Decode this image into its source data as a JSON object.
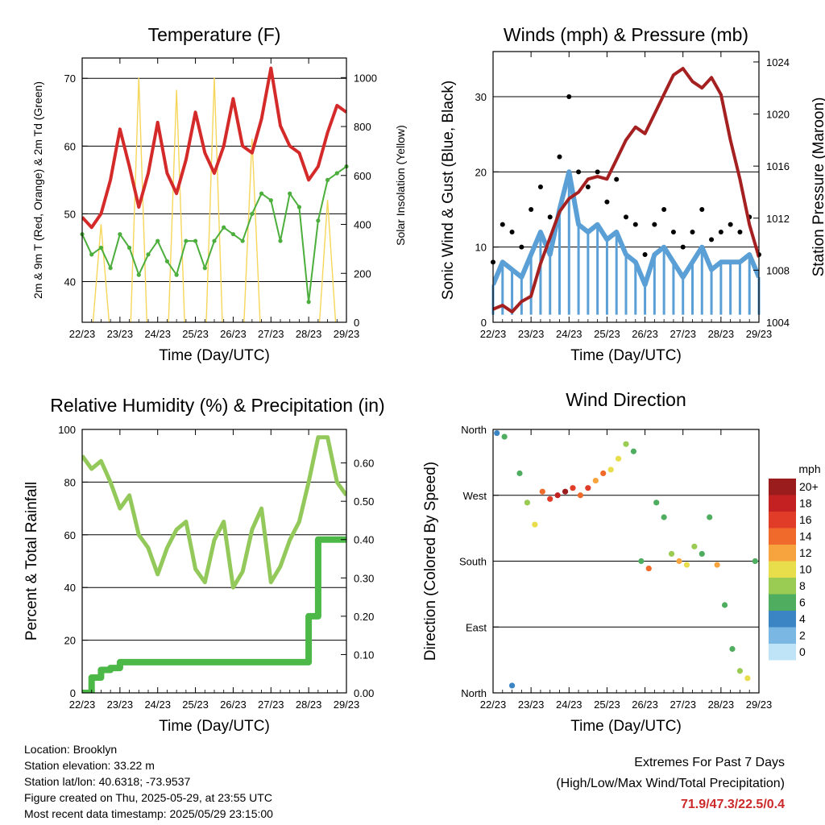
{
  "x_ticks": [
    "22/23",
    "23/23",
    "24/23",
    "25/23",
    "26/23",
    "27/23",
    "28/23",
    "29/23"
  ],
  "x_label": "Time (Day/UTC)",
  "colors": {
    "red_temp": "#d42a2a",
    "green_td": "#4cae3c",
    "solar": "#f5d65a",
    "gust": "#000000",
    "wind": "#5a9fd6",
    "pressure": "#a52020",
    "rh": "#93c95a",
    "precip": "#4cb847",
    "extreme_text": "#cc2a2a"
  },
  "panels": {
    "temperature": {
      "title": "Temperature (F)",
      "ylabel_left": "2m & 9m T (Red, Orange) & 2m Td (Green)",
      "ylabel_right": "Solar Insolation (Yellow)",
      "left_ticks": [
        "40",
        "50",
        "60",
        "70"
      ],
      "right_ticks": [
        "0",
        "200",
        "400",
        "600",
        "800",
        "1000"
      ]
    },
    "winds": {
      "title": "Winds (mph) & Pressure (mb)",
      "ylabel_left": "Sonic Wind & Gust (Blue, Black)",
      "ylabel_right": "Station Pressure (Maroon)",
      "left_ticks": [
        "0",
        "10",
        "20",
        "30"
      ],
      "right_ticks": [
        "1004",
        "1008",
        "1012",
        "1016",
        "1020",
        "1024"
      ]
    },
    "humidity": {
      "title": "Relative Humidity (%) & Precipitation (in)",
      "ylabel_left": "Percent & Total Rainfall",
      "left_ticks": [
        "0",
        "20",
        "40",
        "60",
        "80",
        "100"
      ],
      "right_ticks": [
        "0.00",
        "0.10",
        "0.20",
        "0.30",
        "0.40",
        "0.50",
        "0.60"
      ]
    },
    "direction": {
      "title": "Wind Direction",
      "ylabel_left": "Direction (Colored By Speed)",
      "left_ticks": [
        "North",
        "East",
        "South",
        "West",
        "North"
      ],
      "legend_title": "mph",
      "legend_labels": [
        "20+",
        "18",
        "16",
        "14",
        "12",
        "10",
        "8",
        "6",
        "4",
        "2",
        "0"
      ],
      "legend_colors": [
        "#9b1c1c",
        "#c42222",
        "#e03c28",
        "#f06a2c",
        "#f7a43e",
        "#e8dd4a",
        "#9acb52",
        "#4fad5f",
        "#3b85c4",
        "#7ab7e3",
        "#bfe3f7"
      ]
    }
  },
  "chart_data": [
    {
      "type": "line",
      "title": "Temperature (F)",
      "xlabel": "Time (Day/UTC)",
      "ylabel": "2m & 9m T (Red, Orange) & 2m Td (Green)",
      "ylabel_right": "Solar Insolation (Yellow)",
      "x": [
        22.0,
        22.25,
        22.5,
        22.75,
        23.0,
        23.25,
        23.5,
        23.75,
        24.0,
        24.25,
        24.5,
        24.75,
        25.0,
        25.25,
        25.5,
        25.75,
        26.0,
        26.25,
        26.5,
        26.75,
        27.0,
        27.25,
        27.5,
        27.75,
        28.0,
        28.25,
        28.5,
        28.75,
        29.0
      ],
      "ylim": [
        34,
        73
      ],
      "ylim_right": [
        0,
        1080
      ],
      "series": [
        {
          "name": "2m & 9m T (Red, Orange)",
          "axis": "left",
          "values": [
            49.5,
            48,
            50,
            55,
            62.5,
            57,
            51,
            56,
            63.5,
            56,
            53,
            58,
            65,
            59,
            56,
            60,
            67,
            60,
            59,
            64,
            71.5,
            63,
            60,
            59,
            55,
            57,
            62,
            66,
            65
          ]
        },
        {
          "name": "2m Td (Green)",
          "axis": "left",
          "values": [
            47,
            44,
            45,
            42,
            47,
            45,
            41,
            44,
            46,
            43,
            41,
            46,
            46,
            42,
            46,
            48,
            47,
            46,
            50,
            53,
            52,
            46,
            53,
            51,
            37,
            49,
            55,
            56,
            57
          ]
        },
        {
          "name": "Solar Insolation (Yellow)",
          "axis": "right",
          "values": [
            0,
            0,
            400,
            0,
            0,
            0,
            1000,
            0,
            0,
            0,
            950,
            0,
            0,
            0,
            1000,
            0,
            0,
            0,
            750,
            0,
            0,
            0,
            0,
            0,
            0,
            0,
            500,
            0,
            0
          ]
        }
      ]
    },
    {
      "type": "line",
      "title": "Winds (mph) & Pressure (mb)",
      "xlabel": "Time (Day/UTC)",
      "ylabel": "Sonic Wind & Gust (Blue, Black)",
      "ylabel_right": "Station Pressure (Maroon)",
      "x": [
        22.0,
        22.25,
        22.5,
        22.75,
        23.0,
        23.25,
        23.5,
        23.75,
        24.0,
        24.25,
        24.5,
        24.75,
        25.0,
        25.25,
        25.5,
        25.75,
        26.0,
        26.25,
        26.5,
        26.75,
        27.0,
        27.25,
        27.5,
        27.75,
        28.0,
        28.25,
        28.5,
        28.75,
        29.0
      ],
      "ylim": [
        0,
        36
      ],
      "ylim_right": [
        1004,
        1024.8
      ],
      "series": [
        {
          "name": "Gust (Black)",
          "axis": "left",
          "values": [
            8,
            13,
            12,
            10,
            15,
            18,
            14,
            22,
            30,
            20,
            18,
            20,
            16,
            19,
            14,
            13,
            9,
            13,
            15,
            12,
            10,
            12,
            15,
            11,
            12,
            13,
            12,
            14,
            9
          ]
        },
        {
          "name": "Sonic Wind (Blue)",
          "axis": "left",
          "values": [
            5,
            8,
            7,
            6,
            9,
            12,
            9,
            15,
            20,
            13,
            12,
            13,
            11,
            12,
            9,
            8,
            5,
            9,
            10,
            8,
            6,
            8,
            10,
            7,
            8,
            8,
            8,
            9,
            6
          ]
        },
        {
          "name": "Station Pressure (Maroon)",
          "axis": "right",
          "values": [
            1005,
            1005.3,
            1004.8,
            1005.6,
            1006,
            1008.5,
            1010.5,
            1012.5,
            1013.5,
            1014,
            1015,
            1015.2,
            1015,
            1016.5,
            1018,
            1019,
            1018.5,
            1020,
            1021.5,
            1023,
            1023.5,
            1022.5,
            1022,
            1022.8,
            1021.5,
            1018,
            1015,
            1011.5,
            1009
          ]
        }
      ]
    },
    {
      "type": "line",
      "title": "Relative Humidity (%) & Precipitation (in)",
      "xlabel": "Time (Day/UTC)",
      "ylabel": "Percent & Total Rainfall",
      "x": [
        22.0,
        22.25,
        22.5,
        22.75,
        23.0,
        23.25,
        23.5,
        23.75,
        24.0,
        24.25,
        24.5,
        24.75,
        25.0,
        25.25,
        25.5,
        25.75,
        26.0,
        26.25,
        26.5,
        26.75,
        27.0,
        27.25,
        27.5,
        27.75,
        28.0,
        28.25,
        28.5,
        28.75,
        29.0
      ],
      "ylim": [
        0,
        100
      ],
      "ylim_right": [
        0,
        0.6875
      ],
      "series": [
        {
          "name": "Relative Humidity (%)",
          "axis": "left",
          "values": [
            90,
            85,
            88,
            80,
            70,
            75,
            60,
            55,
            45,
            55,
            62,
            65,
            47,
            42,
            58,
            65,
            40,
            46,
            62,
            70,
            42,
            48,
            58,
            65,
            80,
            97,
            97,
            80,
            75
          ]
        },
        {
          "name": "Total Precipitation (in)",
          "axis": "right",
          "values": [
            0.0,
            0.04,
            0.06,
            0.065,
            0.08,
            0.08,
            0.08,
            0.08,
            0.08,
            0.08,
            0.08,
            0.08,
            0.08,
            0.08,
            0.08,
            0.08,
            0.08,
            0.08,
            0.08,
            0.08,
            0.08,
            0.08,
            0.08,
            0.08,
            0.2,
            0.4,
            0.4,
            0.4,
            0.4
          ]
        }
      ]
    },
    {
      "type": "scatter",
      "title": "Wind Direction",
      "xlabel": "Time (Day/UTC)",
      "ylabel": "Direction (Colored By Speed)",
      "ytick_labels": [
        "North",
        "East",
        "South",
        "West",
        "North"
      ],
      "ylim": [
        0,
        360
      ],
      "x": [
        22.1,
        22.3,
        22.5,
        22.7,
        22.9,
        23.1,
        23.3,
        23.5,
        23.7,
        23.9,
        24.1,
        24.3,
        24.5,
        24.7,
        24.9,
        25.1,
        25.3,
        25.5,
        25.7,
        25.9,
        26.1,
        26.3,
        26.5,
        26.7,
        26.9,
        27.1,
        27.3,
        27.5,
        27.7,
        27.9,
        28.1,
        28.3,
        28.5,
        28.7,
        28.9
      ],
      "y": [
        355,
        350,
        10,
        300,
        260,
        230,
        275,
        265,
        270,
        275,
        280,
        270,
        280,
        290,
        300,
        305,
        320,
        340,
        330,
        180,
        170,
        260,
        240,
        190,
        180,
        175,
        200,
        190,
        240,
        175,
        120,
        60,
        30,
        20,
        180
      ],
      "speed": [
        4,
        5,
        4,
        6,
        8,
        10,
        14,
        15,
        18,
        20,
        16,
        14,
        15,
        12,
        13,
        10,
        9,
        8,
        6,
        5,
        14,
        6,
        5,
        8,
        12,
        10,
        7,
        6,
        5,
        12,
        6,
        5,
        8,
        10,
        6
      ]
    }
  ],
  "info": {
    "location": "Location: Brooklyn",
    "elevation": "Station elevation: 33.22 m",
    "latlon": "Station lat/lon: 40.6318; -73.9537",
    "created": "Figure created on Thu, 2025-05-29, at 23:55 UTC",
    "recent": "Most recent data timestamp: 2025/05/29 23:15:00"
  },
  "extremes": {
    "title": "Extremes For Past 7 Days",
    "subtitle": "(High/Low/Max Wind/Total Precipitation)",
    "values": "71.9/47.3/22.5/0.4"
  }
}
